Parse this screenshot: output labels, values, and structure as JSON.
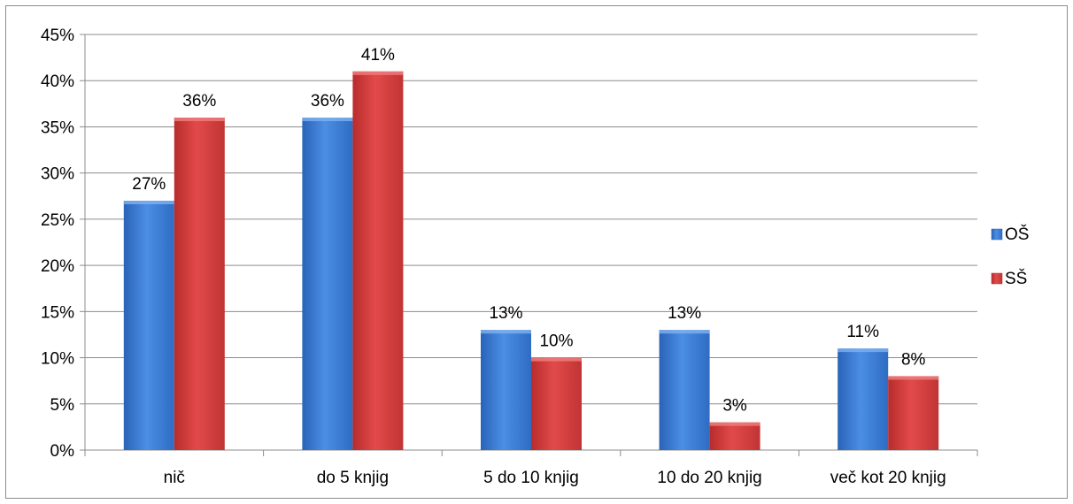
{
  "chart_data": {
    "type": "bar",
    "title": "",
    "xlabel": "",
    "ylabel": "",
    "categories": [
      "nič",
      "do 5 knjig",
      "5 do 10 knjig",
      "10 do 20 knjig",
      "več kot 20 knjig"
    ],
    "series": [
      {
        "name": "OŠ",
        "values": [
          27,
          36,
          13,
          13,
          11
        ],
        "labels": [
          "27%",
          "36%",
          "13%",
          "13%",
          "11%"
        ],
        "color": "#3d7fd6"
      },
      {
        "name": "SŠ",
        "values": [
          36,
          41,
          10,
          3,
          8
        ],
        "labels": [
          "36%",
          "41%",
          "10%",
          "3%",
          "8%"
        ],
        "color": "#d63c3c"
      }
    ],
    "ylim": [
      0,
      45
    ],
    "y_ticks": [
      0,
      5,
      10,
      15,
      20,
      25,
      30,
      35,
      40,
      45
    ],
    "y_tick_labels": [
      "0%",
      "5%",
      "10%",
      "15%",
      "20%",
      "25%",
      "30%",
      "35%",
      "40%",
      "45%"
    ],
    "grid": true,
    "legend_position": "right"
  }
}
